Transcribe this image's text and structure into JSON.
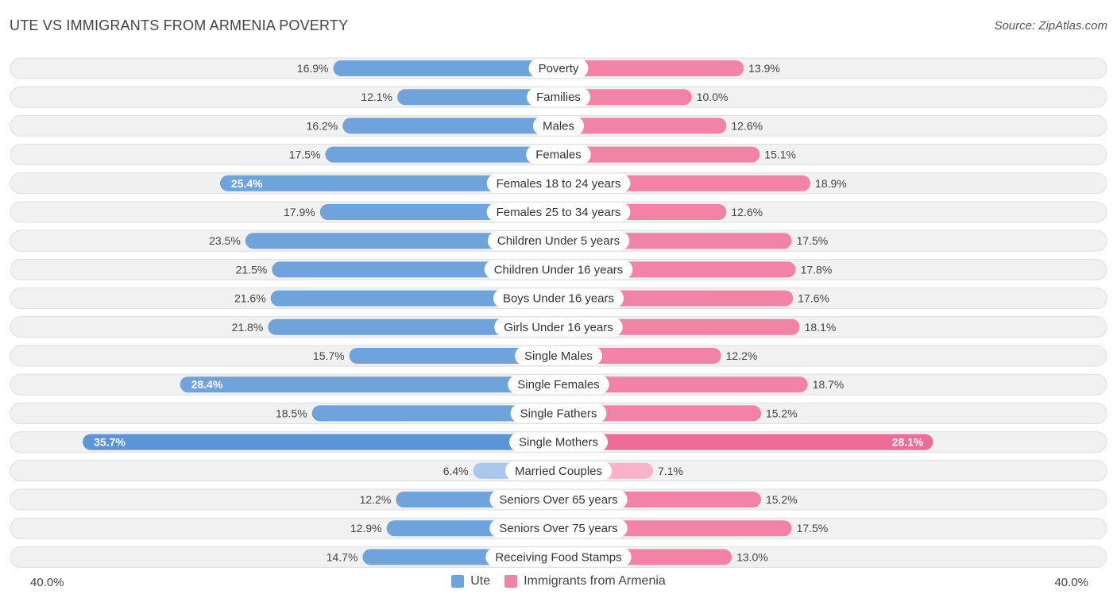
{
  "header": {
    "title": "UTE VS IMMIGRANTS FROM ARMENIA POVERTY",
    "source": "Source: ZipAtlas.com"
  },
  "axis": {
    "left_label": "40.0%",
    "right_label": "40.0%"
  },
  "legend": {
    "ute_label": "Ute",
    "armenia_label": "Immigrants from Armenia"
  },
  "colors": {
    "ute": "#6fa3dc",
    "ute_strong": "#5b95d8",
    "ute_light": "#a9c8ee",
    "armenia": "#f283a7",
    "armenia_strong": "#ef6b98",
    "armenia_light": "#f6b3c9",
    "row_bg": "#f1f1f1",
    "row_border": "#dedede"
  },
  "chart_data": {
    "type": "bar",
    "orientation": "horizontal-diverging",
    "title": "UTE VS IMMIGRANTS FROM ARMENIA POVERTY",
    "xlim": [
      -40,
      40
    ],
    "value_format": "percent",
    "categories": [
      "Poverty",
      "Families",
      "Males",
      "Females",
      "Females 18 to 24 years",
      "Females 25 to 34 years",
      "Children Under 5 years",
      "Children Under 16 years",
      "Boys Under 16 years",
      "Girls Under 16 years",
      "Single Males",
      "Single Females",
      "Single Fathers",
      "Single Mothers",
      "Married Couples",
      "Seniors Over 65 years",
      "Seniors Over 75 years",
      "Receiving Food Stamps"
    ],
    "series": [
      {
        "name": "Ute",
        "side": "left",
        "values": [
          16.9,
          12.1,
          16.2,
          17.5,
          25.4,
          17.9,
          23.5,
          21.5,
          21.6,
          21.8,
          15.7,
          28.4,
          18.5,
          35.7,
          6.4,
          12.2,
          12.9,
          14.7
        ],
        "labels": [
          "16.9%",
          "12.1%",
          "16.2%",
          "17.5%",
          "25.4%",
          "17.9%",
          "23.5%",
          "21.5%",
          "21.6%",
          "21.8%",
          "15.7%",
          "28.4%",
          "18.5%",
          "35.7%",
          "6.4%",
          "12.2%",
          "12.9%",
          "14.7%"
        ]
      },
      {
        "name": "Immigrants from Armenia",
        "side": "right",
        "values": [
          13.9,
          10.0,
          12.6,
          15.1,
          18.9,
          12.6,
          17.5,
          17.8,
          17.6,
          18.1,
          12.2,
          18.7,
          15.2,
          28.1,
          7.1,
          15.2,
          17.5,
          13.0
        ],
        "labels": [
          "13.9%",
          "10.0%",
          "12.6%",
          "15.1%",
          "18.9%",
          "12.6%",
          "17.5%",
          "17.8%",
          "17.6%",
          "18.1%",
          "12.2%",
          "18.7%",
          "15.2%",
          "28.1%",
          "7.1%",
          "15.2%",
          "17.5%",
          "13.0%"
        ]
      }
    ]
  }
}
